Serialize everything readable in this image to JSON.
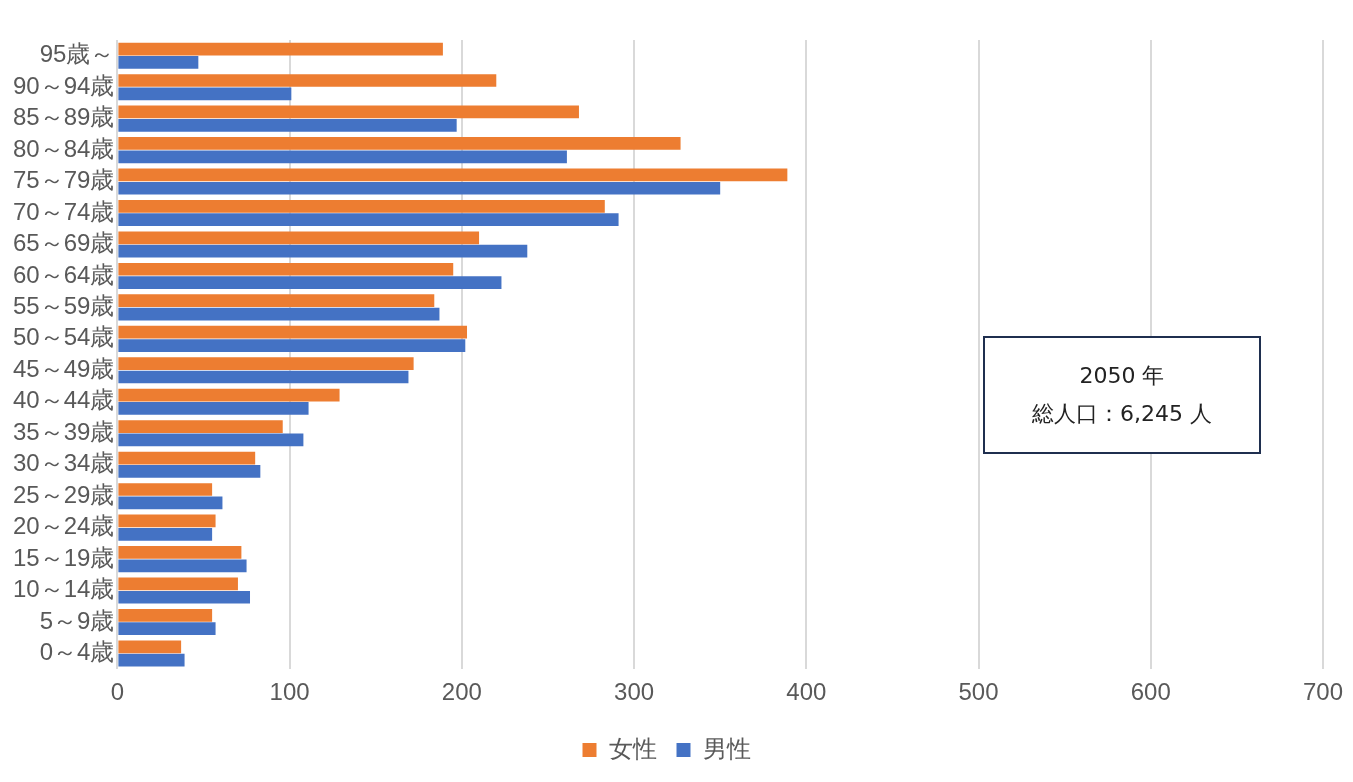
{
  "chart_data": {
    "type": "bar",
    "orientation": "horizontal",
    "categories": [
      "95歳～",
      "90～94歳",
      "85～89歳",
      "80～84歳",
      "75～79歳",
      "70～74歳",
      "65～69歳",
      "60～64歳",
      "55～59歳",
      "50～54歳",
      "45～49歳",
      "40～44歳",
      "35～39歳",
      "30～34歳",
      "25～29歳",
      "20～24歳",
      "15～19歳",
      "10～14歳",
      "5～9歳",
      "0～4歳"
    ],
    "series": [
      {
        "name": "女性",
        "color": "#ed7d31",
        "values": [
          189,
          220,
          268,
          327,
          389,
          283,
          210,
          195,
          184,
          203,
          172,
          129,
          96,
          80,
          55,
          57,
          72,
          70,
          55,
          37
        ]
      },
      {
        "name": "男性",
        "color": "#4472c4",
        "values": [
          47,
          101,
          197,
          261,
          350,
          291,
          238,
          223,
          187,
          202,
          169,
          111,
          108,
          83,
          61,
          55,
          75,
          77,
          57,
          39
        ]
      }
    ],
    "xlim": [
      0,
      700
    ],
    "xticks": [
      0,
      100,
      200,
      300,
      400,
      500,
      600,
      700
    ],
    "grid": "x",
    "legend": "bottom",
    "annotations": [
      "2050 年",
      "総人口：6,245 人"
    ]
  }
}
